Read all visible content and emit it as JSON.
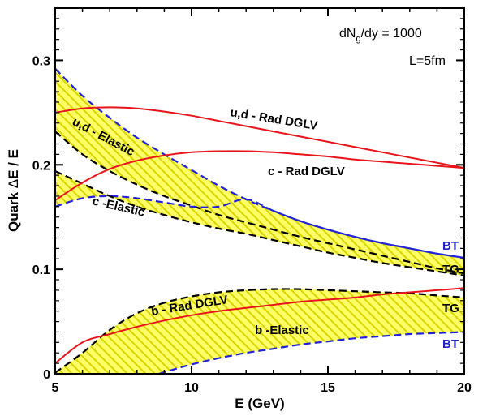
{
  "chart_data": {
    "type": "line",
    "xlabel": "E (GeV)",
    "ylabel_prefix": "Quark ",
    "ylabel_delta": "Δ",
    "ylabel_suffix": "E / E",
    "xlim": [
      5,
      20
    ],
    "ylim": [
      0,
      0.35
    ],
    "xticks": [
      5,
      10,
      15,
      20
    ],
    "xtick_labels": [
      "5",
      "10",
      "15",
      "20"
    ],
    "yticks": [
      0,
      0.1,
      0.2,
      0.3
    ],
    "ytick_labels": [
      "0",
      "0.1",
      "0.2",
      "0.3"
    ],
    "annot_dndy_pre": "dN",
    "annot_dndy_sub": "g",
    "annot_dndy_post": "/dy = 1000",
    "annot_length": "L=5fm",
    "bands": [
      {
        "name": "light-quark-elastic-band",
        "upper": {
          "x": [
            5,
            6,
            7,
            8,
            9,
            10,
            11,
            12,
            13,
            14,
            15,
            16,
            17,
            18,
            19,
            20
          ],
          "y": [
            0.292,
            0.266,
            0.245,
            0.226,
            0.21,
            0.195,
            0.18,
            0.167,
            0.156,
            0.146,
            0.138,
            0.131,
            0.125,
            0.12,
            0.115,
            0.111
          ]
        },
        "lower": {
          "x": [
            5,
            6,
            7,
            8,
            9,
            10,
            11,
            12,
            13,
            14,
            15,
            16,
            17,
            18,
            19,
            20
          ],
          "y": [
            0.232,
            0.21,
            0.194,
            0.181,
            0.17,
            0.161,
            0.152,
            0.145,
            0.138,
            0.131,
            0.125,
            0.119,
            0.113,
            0.107,
            0.101,
            0.096
          ]
        }
      },
      {
        "name": "charm-elastic-band",
        "upper": {
          "x": [
            5,
            6,
            7,
            8,
            9,
            10,
            11,
            12,
            13,
            14,
            15,
            16,
            17,
            18,
            19,
            20
          ],
          "y": [
            0.16,
            0.168,
            0.17,
            0.168,
            0.164,
            0.16,
            0.16,
            0.167,
            0.156,
            0.146,
            0.138,
            0.131,
            0.125,
            0.12,
            0.115,
            0.111
          ]
        },
        "lower": {
          "x": [
            5,
            6,
            7,
            8,
            9,
            10,
            11,
            12,
            13,
            14,
            15,
            16,
            17,
            18,
            19,
            20
          ],
          "y": [
            0.194,
            0.182,
            0.17,
            0.16,
            0.152,
            0.145,
            0.139,
            0.134,
            0.128,
            0.122,
            0.116,
            0.111,
            0.106,
            0.102,
            0.098,
            0.094
          ]
        }
      },
      {
        "name": "bottom-elastic-band",
        "upper": {
          "x": [
            5,
            6,
            7,
            8,
            9,
            10,
            11,
            12,
            13,
            14,
            15,
            16,
            17,
            18,
            19,
            20
          ],
          "y": [
            0.001,
            0.02,
            0.042,
            0.058,
            0.068,
            0.074,
            0.078,
            0.08,
            0.081,
            0.081,
            0.08,
            0.079,
            0.078,
            0.077,
            0.075,
            0.073
          ]
        },
        "lower": {
          "x": [
            8.8,
            10,
            11,
            12,
            13,
            14,
            15,
            16,
            17,
            18,
            19,
            20
          ],
          "y": [
            0.0,
            0.009,
            0.015,
            0.02,
            0.024,
            0.028,
            0.031,
            0.034,
            0.036,
            0.038,
            0.039,
            0.04
          ]
        }
      }
    ],
    "series": [
      {
        "name": "ud-rad-dglv",
        "label": "u,d - Rad DGLV",
        "color": "#e8141c",
        "style": "solid",
        "x": [
          5,
          6,
          7,
          8,
          9,
          10,
          11,
          12,
          13,
          14,
          15,
          16,
          17,
          18,
          19,
          20
        ],
        "y": [
          0.25,
          0.254,
          0.255,
          0.254,
          0.251,
          0.247,
          0.242,
          0.237,
          0.232,
          0.227,
          0.222,
          0.217,
          0.212,
          0.207,
          0.202,
          0.197
        ]
      },
      {
        "name": "c-rad-dglv",
        "label": "c - Rad DGLV",
        "color": "#e8141c",
        "style": "solid",
        "x": [
          5,
          6,
          7,
          8,
          9,
          10,
          11,
          12,
          13,
          14,
          15,
          16,
          17,
          18,
          19,
          20
        ],
        "y": [
          0.166,
          0.183,
          0.196,
          0.204,
          0.209,
          0.212,
          0.213,
          0.213,
          0.212,
          0.21,
          0.208,
          0.205,
          0.203,
          0.201,
          0.199,
          0.197
        ]
      },
      {
        "name": "b-rad-dglv",
        "label": "b - Rad DGLV",
        "color": "#e8141c",
        "style": "solid",
        "x": [
          5,
          6,
          7,
          8,
          9,
          10,
          11,
          12,
          13,
          14,
          15,
          16,
          17,
          18,
          19,
          20
        ],
        "y": [
          0.01,
          0.03,
          0.038,
          0.045,
          0.051,
          0.056,
          0.06,
          0.063,
          0.066,
          0.069,
          0.071,
          0.073,
          0.076,
          0.078,
          0.08,
          0.082
        ]
      }
    ],
    "labels": {
      "ud_rad": "u,d - Rad DGLV",
      "c_rad": "c - Rad DGLV",
      "b_rad": "b - Rad DGLV",
      "ud_el": "u,d - Elastic",
      "c_el": "c -Elastic",
      "b_el": "b -Elastic",
      "bt_upper": "BT",
      "tg_upper": "TG",
      "tg_lower": "TG",
      "bt_lower": "BT"
    },
    "colors": {
      "rad": "#e8141c",
      "bt": "#2323d6",
      "tg": "#000000",
      "band_fill": "#ffff66",
      "hatch": "#c8c400",
      "bt_label": "#2323c8"
    }
  }
}
